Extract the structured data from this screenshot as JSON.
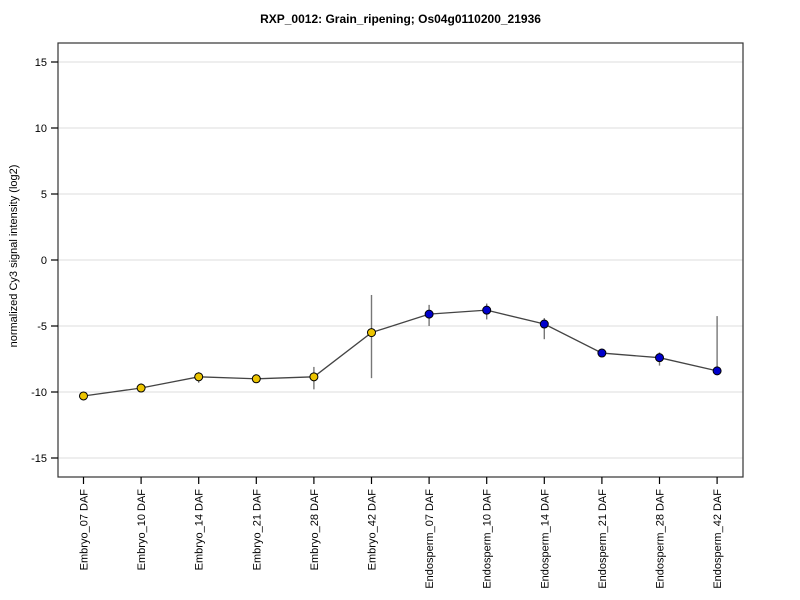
{
  "figure": {
    "title": "RXP_0012: Grain_ripening; Os04g0110200_21936",
    "ylabel": "normalized Cy3 signal intensity (log2)"
  },
  "chart_data": {
    "type": "line",
    "title": "RXP_0012: Grain_ripening; Os04g0110200_21936",
    "xlabel": "",
    "ylabel": "normalized Cy3 signal intensity (log2)",
    "ylim": [
      -16.4,
      16.4
    ],
    "yticks": [
      -15,
      -10,
      -5,
      0,
      5,
      10,
      15
    ],
    "grid": "horizontal light lines at every y tick",
    "legend_position": "none",
    "categories": [
      "Embryo_07 DAF",
      "Embryo_10 DAF",
      "Embryo_14 DAF",
      "Embryo_21 DAF",
      "Embryo_28 DAF",
      "Embryo_42 DAF",
      "Endosperm_07 DAF",
      "Endosperm_10 DAF",
      "Endosperm_14 DAF",
      "Endosperm_21 DAF",
      "Endosperm_28 DAF",
      "Endosperm_42 DAF"
    ],
    "series": [
      {
        "name": "normalized Cy3 signal intensity (log2)",
        "values": [
          -10.3,
          -9.7,
          -8.85,
          -9.0,
          -8.85,
          -5.5,
          -4.1,
          -3.8,
          -4.85,
          -7.05,
          -7.4,
          -8.4
        ],
        "err_low": [
          -10.4,
          -10.0,
          -9.3,
          -9.2,
          -9.8,
          -8.95,
          -5.0,
          -4.5,
          -6.0,
          -7.25,
          -8.0,
          -8.55
        ],
        "err_high": [
          -10.2,
          -9.35,
          -8.5,
          -8.8,
          -8.1,
          -2.65,
          -3.4,
          -3.3,
          -4.4,
          -6.85,
          -7.0,
          -4.25
        ]
      }
    ],
    "point_groups": [
      {
        "name": "Embryo",
        "start_index": 0,
        "end_index": 5,
        "marker_color": "#ECC400"
      },
      {
        "name": "Endosperm",
        "start_index": 6,
        "end_index": 11,
        "marker_color": "#0000CC"
      }
    ],
    "colors": {
      "line": "#444444",
      "error_bar": "#777777",
      "marker_outline": "#000000",
      "grid": "#DDDDDD",
      "frame": "#333333",
      "tick": "#000000",
      "background": "#FFFFFF"
    }
  }
}
